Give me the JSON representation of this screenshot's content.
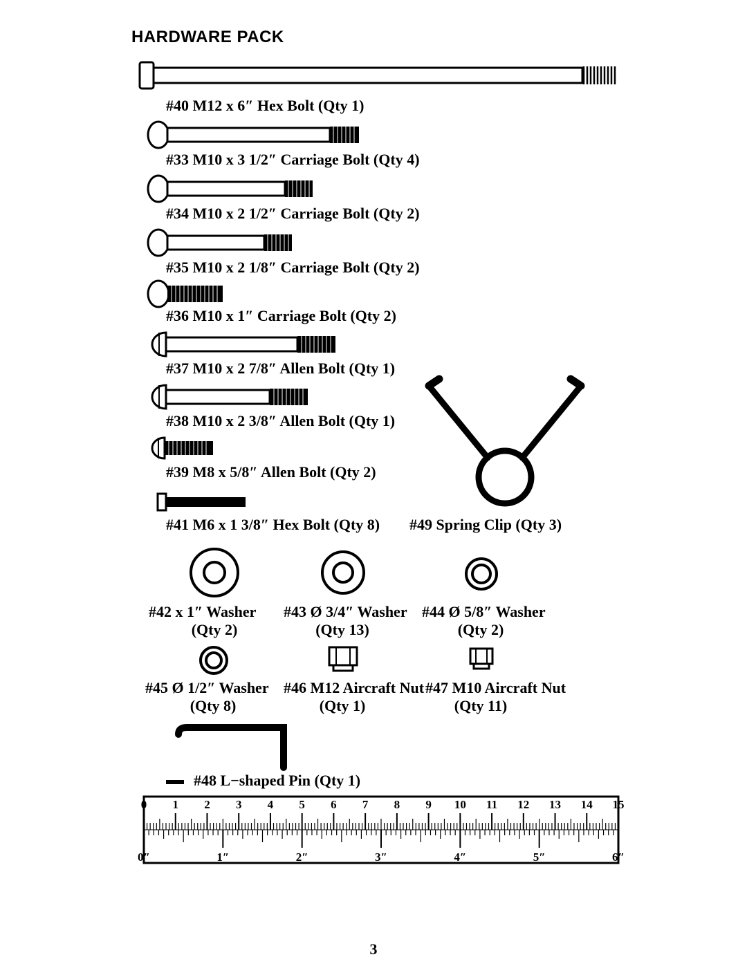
{
  "title": "HARDWARE PACK",
  "page_number": "3",
  "stroke": "#000000",
  "bg": "#ffffff",
  "items": {
    "i40": "#40 M12 x 6″ Hex Bolt (Qty 1)",
    "i33": "#33 M10 x 3 1/2″ Carriage Bolt (Qty 4)",
    "i34": "#34 M10 x 2 1/2″ Carriage Bolt (Qty 2)",
    "i35": "#35 M10 x 2 1/8″ Carriage Bolt (Qty 2)",
    "i36": "#36 M10 x 1″ Carriage Bolt (Qty 2)",
    "i37": "#37 M10 x 2 7/8″ Allen Bolt (Qty 1)",
    "i38": "#38 M10 x 2 3/8″ Allen Bolt (Qty 1)",
    "i39": "#39 M8 x 5/8″ Allen Bolt (Qty 2)",
    "i41": "#41 M6 x 1 3/8″ Hex Bolt (Qty 8)",
    "i49": "#49 Spring Clip (Qty 3)",
    "i42": "#42 x 1″ Washer",
    "i42q": "(Qty 2)",
    "i43": "#43 Ø 3/4″ Washer",
    "i43q": "(Qty 13)",
    "i44": "#44 Ø 5/8″ Washer",
    "i44q": "(Qty 2)",
    "i45": "#45 Ø 1/2″ Washer",
    "i45q": "(Qty 8)",
    "i46": "#46 M12 Aircraft Nut",
    "i46q": "(Qty 1)",
    "i47": "#47 M10 Aircraft Nut",
    "i47q": "(Qty 11)",
    "i48": "#48 L−shaped Pin (Qty 1)"
  },
  "ruler": {
    "cm_max": 15,
    "in_max": 6
  }
}
